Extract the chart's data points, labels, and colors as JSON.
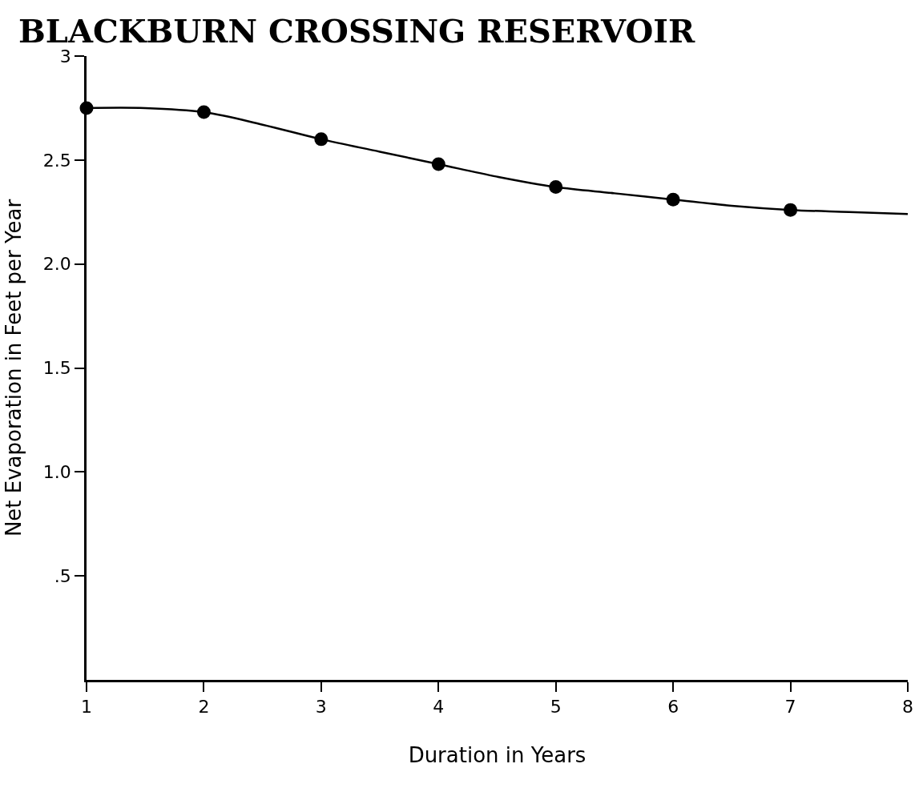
{
  "chart_data": {
    "type": "line",
    "title": "BLACKBURN CROSSING RESERVOIR",
    "xlabel": "Duration in Years",
    "ylabel": "Net Evaporation in Feet per Year",
    "x": [
      1,
      2,
      3,
      4,
      5,
      6,
      7
    ],
    "series": [
      {
        "type": "scatter",
        "color": "#000000",
        "marker": "circle",
        "values": [
          2.75,
          2.73,
          2.6,
          2.48,
          2.37,
          2.31,
          2.26
        ]
      },
      {
        "type": "line",
        "color": "#000000",
        "marker": "none",
        "line_style": "solid",
        "x": [
          1,
          1.5,
          2,
          2.5,
          3,
          3.5,
          4,
          4.5,
          5,
          5.5,
          6,
          6.5,
          7,
          7.5,
          8
        ],
        "values": [
          2.75,
          2.75,
          2.73,
          2.67,
          2.6,
          2.54,
          2.48,
          2.42,
          2.37,
          2.34,
          2.31,
          2.28,
          2.26,
          2.25,
          2.24
        ]
      }
    ],
    "xlim": [
      1,
      8
    ],
    "xticks": [
      1,
      2,
      3,
      4,
      5,
      6,
      7,
      8
    ],
    "ylim": [
      0,
      3
    ],
    "yticks": [
      {
        "value": 0.5,
        "label": ".5"
      },
      {
        "value": 1,
        "label": "1.0"
      },
      {
        "value": 1.5,
        "label": "1.5"
      },
      {
        "value": 2,
        "label": "2.0"
      },
      {
        "value": 2.5,
        "label": "2.5"
      },
      3
    ],
    "grid": false
  }
}
